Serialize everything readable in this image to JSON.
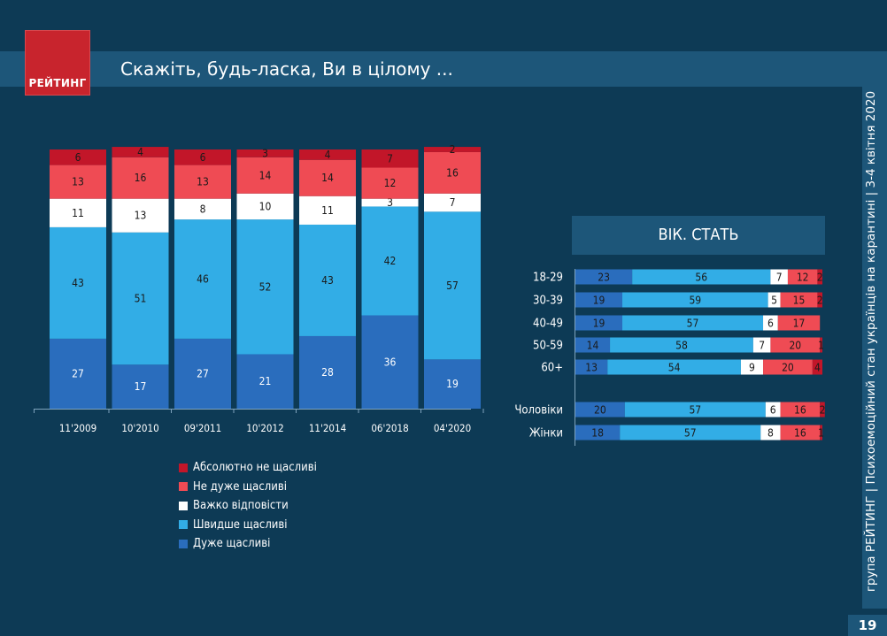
{
  "header": {
    "logo_text": "РЕЙТИНГ",
    "title": "Скажіть, будь-ласка, Ви в цілому ..."
  },
  "side_text": "група РЕЙТИНГ  |  Психоемоційний стан українців на карантині  |  3-4 квітня 2020",
  "page_number": "19",
  "colors": {
    "very_happy": "#2a6dbd",
    "rather_happy": "#32ade6",
    "hard_to_say": "#ffffff",
    "not_very_happy": "#ef4b54",
    "absolutely_unhappy": "#c21629"
  },
  "chart_data": [
    {
      "type": "bar",
      "stacked": true,
      "categories": [
        "11'2009",
        "10'2010",
        "09'2011",
        "10'2012",
        "11'2014",
        "06'2018",
        "04'2020"
      ],
      "series": [
        {
          "name": "Дуже щасливі",
          "values": [
            27,
            17,
            27,
            21,
            28,
            36,
            19
          ]
        },
        {
          "name": "Швидше щасливі",
          "values": [
            43,
            51,
            46,
            52,
            43,
            42,
            57
          ]
        },
        {
          "name": "Важко відповісти",
          "values": [
            11,
            13,
            8,
            10,
            11,
            3,
            7
          ]
        },
        {
          "name": "Не дуже щасливі",
          "values": [
            13,
            16,
            13,
            14,
            14,
            12,
            16
          ]
        },
        {
          "name": "Абсолютно не щасливі",
          "values": [
            6,
            4,
            6,
            3,
            4,
            7,
            2
          ]
        }
      ],
      "legend_position": "bottom"
    },
    {
      "type": "bar",
      "stacked": true,
      "orientation": "horizontal",
      "title": "ВІК. СТАТЬ",
      "categories": [
        "18-29",
        "30-39",
        "40-49",
        "50-59",
        "60+",
        "Чоловіки",
        "Жінки"
      ],
      "series": [
        {
          "name": "Дуже щасливі",
          "values": [
            23,
            19,
            19,
            14,
            13,
            20,
            18
          ]
        },
        {
          "name": "Швидше щасливі",
          "values": [
            56,
            59,
            57,
            58,
            54,
            57,
            57
          ]
        },
        {
          "name": "Важко відповісти",
          "values": [
            7,
            5,
            6,
            7,
            9,
            6,
            8
          ]
        },
        {
          "name": "Не дуже щасливі",
          "values": [
            12,
            15,
            17,
            20,
            20,
            16,
            16
          ]
        },
        {
          "name": "Абсолютно не щасливі",
          "values": [
            2,
            2,
            null,
            1,
            4,
            2,
            1
          ]
        }
      ]
    }
  ],
  "legend": [
    "Абсолютно не щасливі",
    "Не дуже щасливі",
    "Важко відповісти",
    "Швидше щасливі",
    "Дуже щасливі"
  ]
}
